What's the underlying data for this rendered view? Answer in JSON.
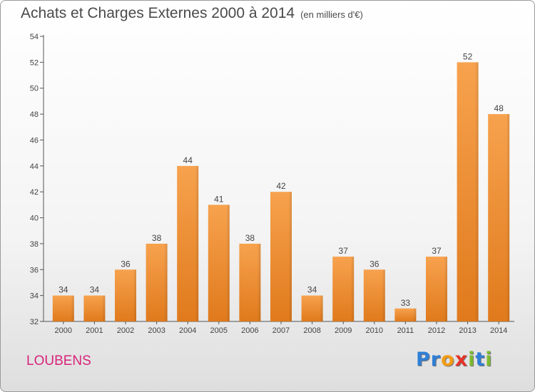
{
  "chart_data": {
    "type": "bar",
    "title": "Achats et Charges Externes 2000 à 2014",
    "subtitle": "(en milliers d'€)",
    "categories": [
      "2000",
      "2001",
      "2002",
      "2003",
      "2004",
      "2005",
      "2006",
      "2007",
      "2008",
      "2009",
      "2010",
      "2011",
      "2012",
      "2013",
      "2014"
    ],
    "values": [
      34,
      34,
      36,
      38,
      44,
      41,
      38,
      42,
      34,
      37,
      36,
      33,
      37,
      52,
      48
    ],
    "ylim": [
      32,
      54
    ],
    "yticks": [
      32,
      34,
      36,
      38,
      40,
      42,
      44,
      46,
      48,
      50,
      52,
      54
    ],
    "grid": false,
    "xlabel": "",
    "ylabel": "",
    "bar_color": "#f0862a"
  },
  "footer": {
    "place": "LOUBENS",
    "place_color": "#d8237a",
    "logo_letters": [
      {
        "ch": "P",
        "color": "#2f7fd6"
      },
      {
        "ch": "r",
        "color": "#2f7fd6"
      },
      {
        "ch": "o",
        "color": "#f39c12"
      },
      {
        "ch": "x",
        "color": "#e5332a"
      },
      {
        "ch": "i",
        "color": "#7dbb2e"
      },
      {
        "ch": "t",
        "color": "#2f7fd6"
      },
      {
        "ch": "i",
        "color": "#7dbb2e"
      }
    ]
  }
}
